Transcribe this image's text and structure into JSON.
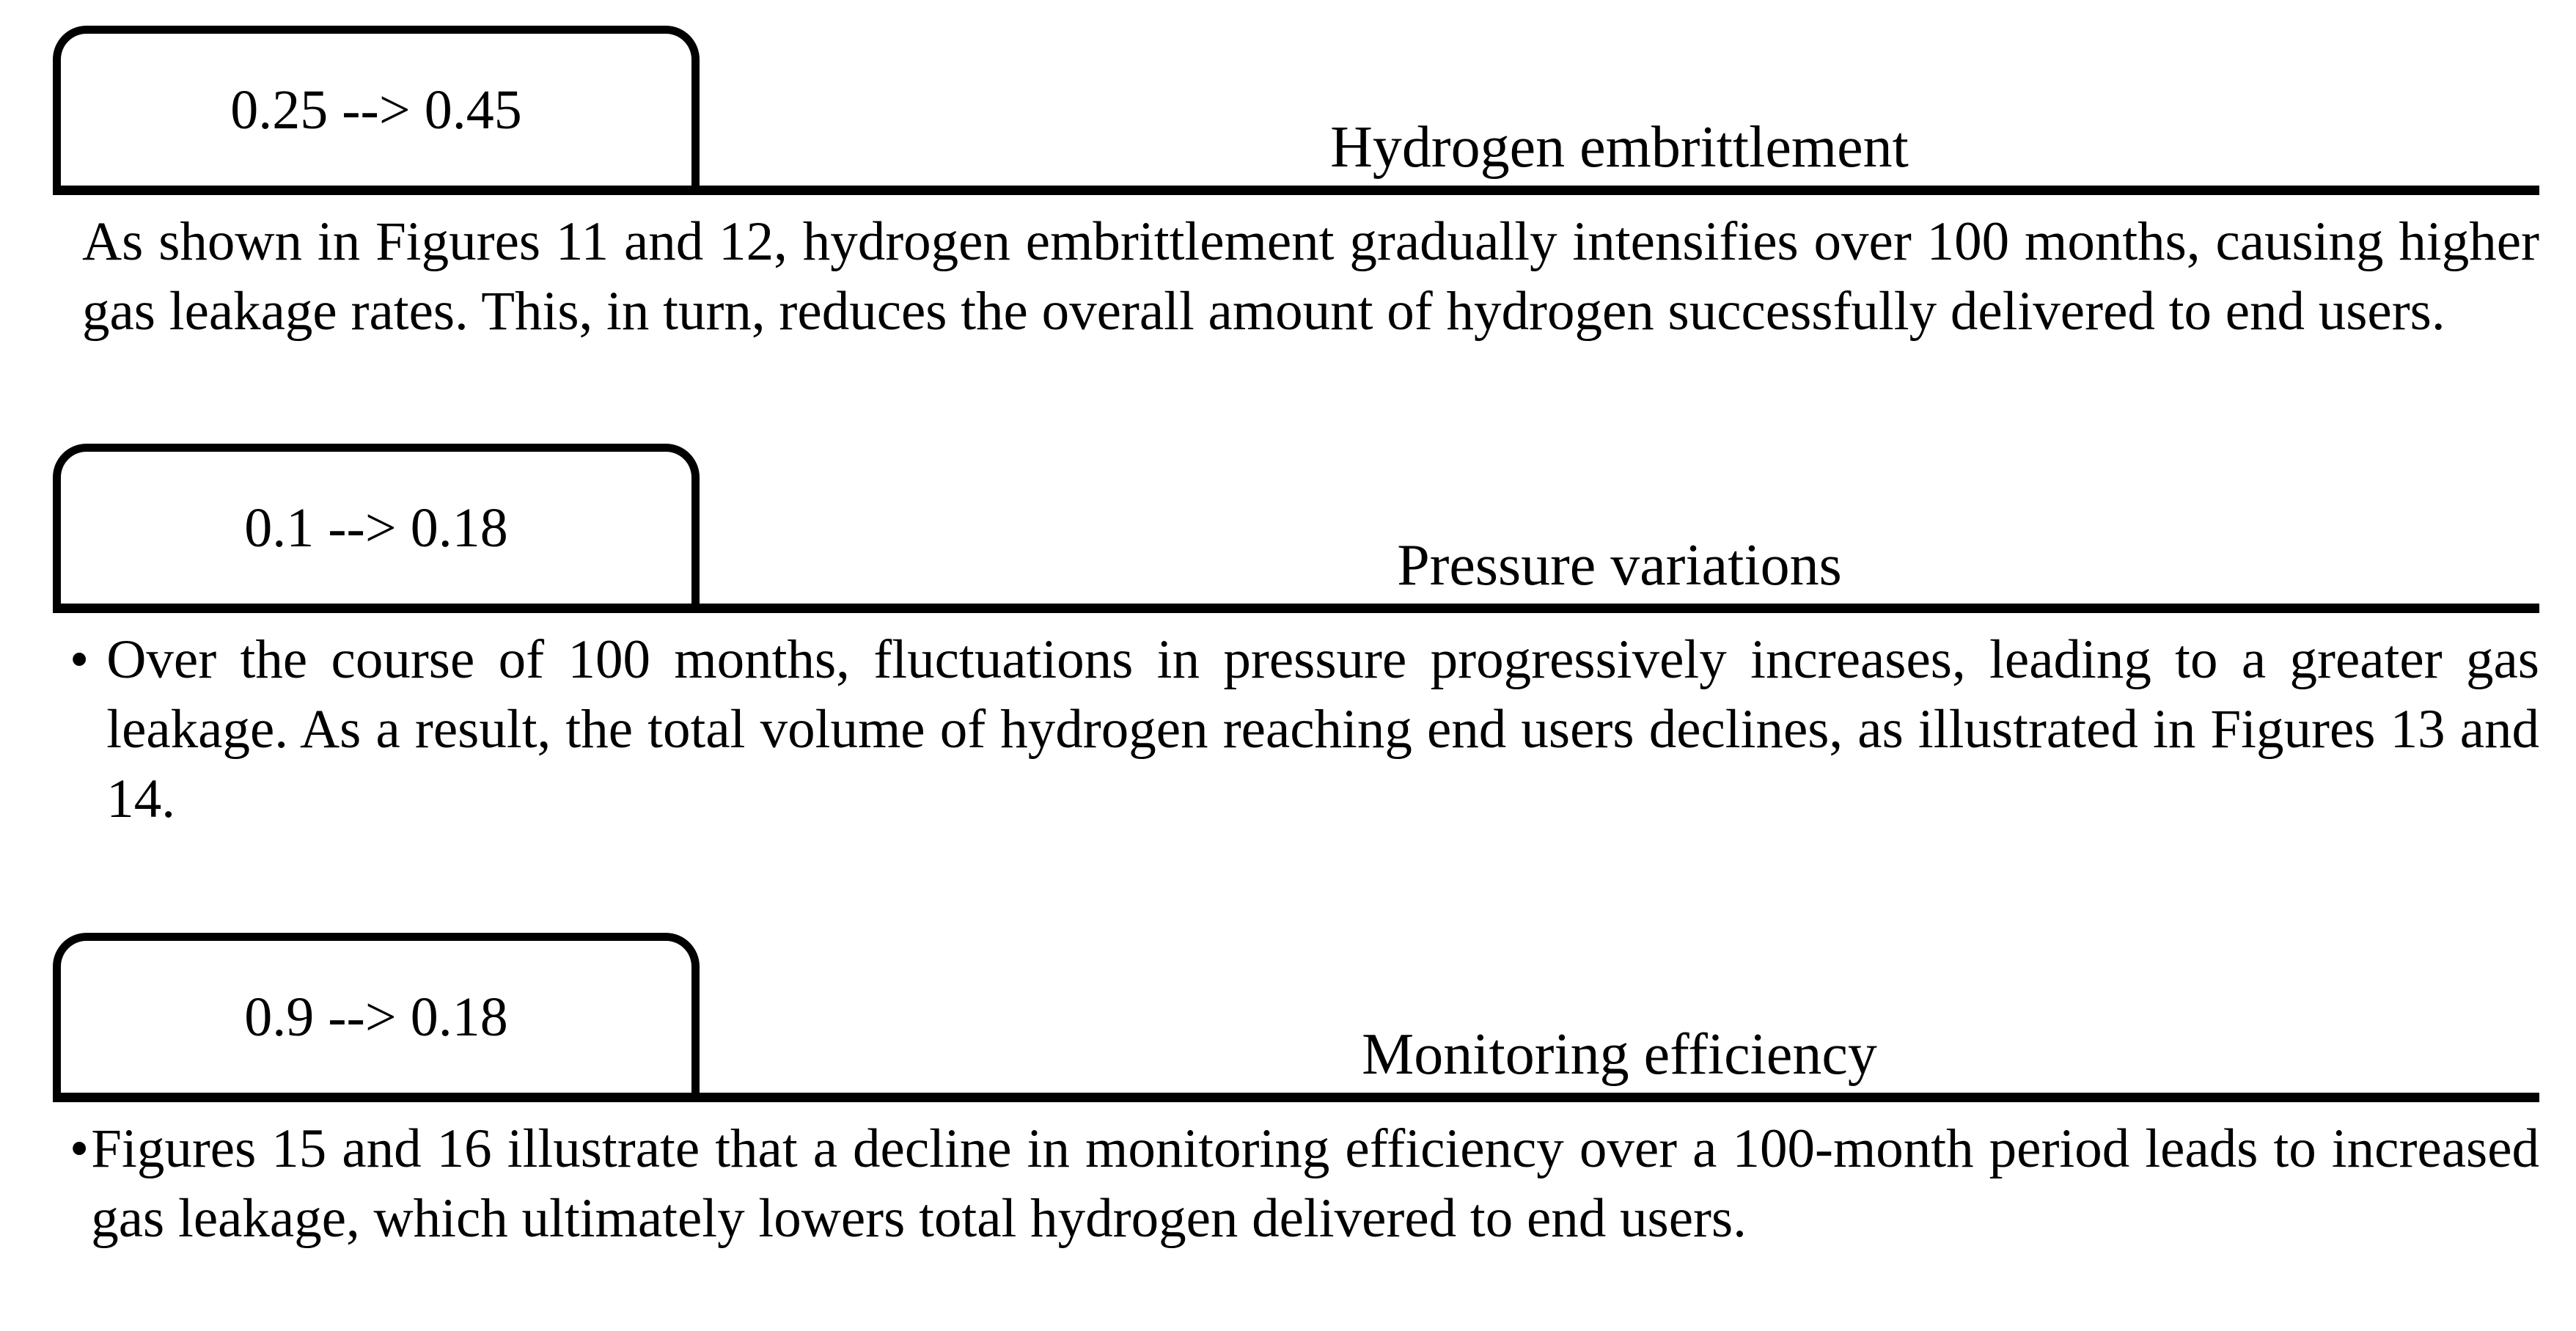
{
  "page": {
    "bullet": "•",
    "text_color": "#000000",
    "background_color": "#ffffff"
  },
  "sections": [
    {
      "id": "hydrogen-embrittlement",
      "box_value": "0.25 --> 0.45",
      "heading": "Hydrogen embrittlement",
      "has_bullet": false,
      "paragraph": "As shown in Figures 11 and 12, hydrogen embrittlement gradually intensifies over 100 months, causing higher gas leakage rates. This, in turn, reduces the overall amount of hydrogen successfully delivered to end users."
    },
    {
      "id": "pressure-variations",
      "box_value": "0.1 --> 0.18",
      "heading": "Pressure variations",
      "has_bullet": true,
      "paragraph": "Over the course of 100 months, fluctuations in pressure progressively increases, leading to a greater gas leakage. As a result, the total volume of hydrogen reaching end users declines, as illustrated in Figures 13 and 14."
    },
    {
      "id": "monitoring-efficiency",
      "box_value": "0.9 --> 0.18",
      "heading": "Monitoring efficiency",
      "has_bullet": true,
      "paragraph": "Figures 15 and 16 illustrate that a decline in monitoring efficiency over a 100-month period leads to increased gas leakage, which ultimately lowers total hydrogen delivered to end users."
    }
  ]
}
